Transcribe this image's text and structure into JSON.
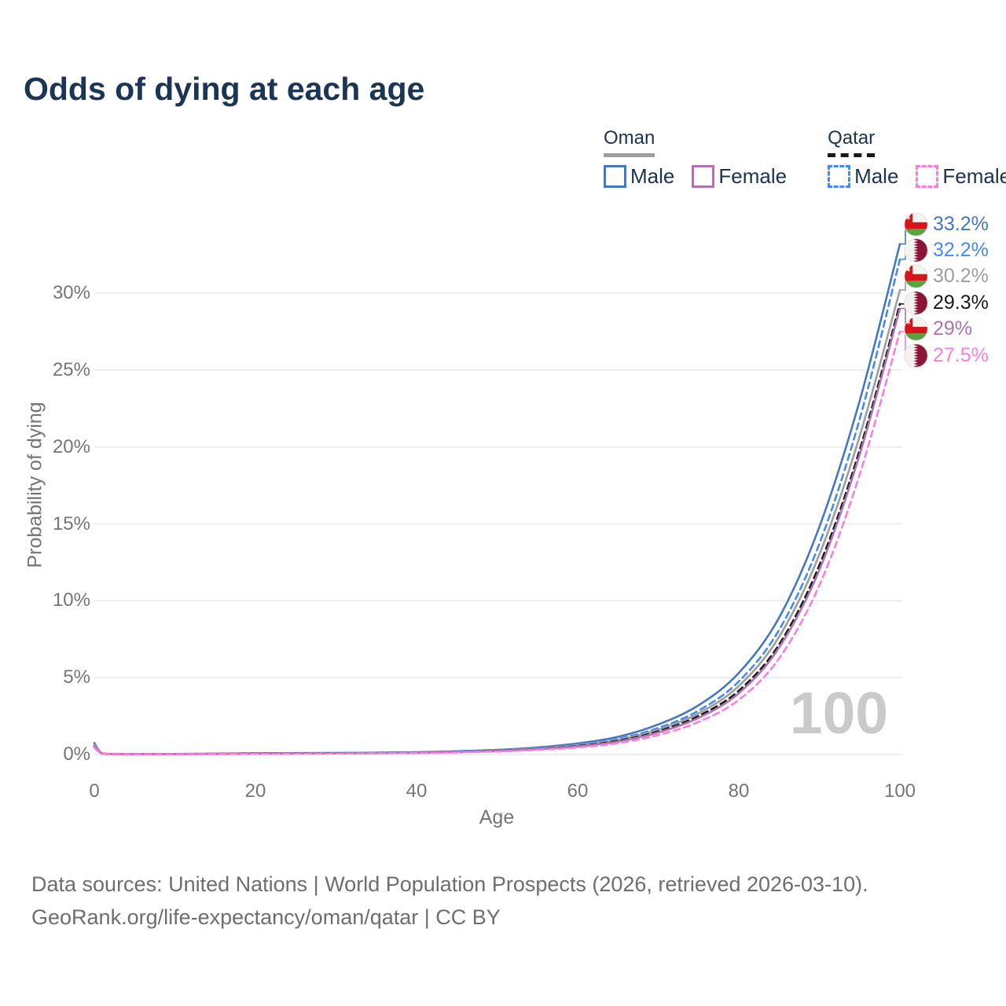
{
  "title": "Odds of dying at each age",
  "legend": {
    "groups": [
      {
        "title": "Oman",
        "line_style": "solid",
        "underline_color": "#9E9E9E",
        "items": [
          {
            "label": "Male",
            "color": "#4478C1",
            "dash": false
          },
          {
            "label": "Female",
            "color": "#B172B2",
            "dash": false
          }
        ]
      },
      {
        "title": "Qatar",
        "line_style": "dashed",
        "underline_color": "#1A1A1A",
        "items": [
          {
            "label": "Male",
            "color": "#4789F2",
            "dash": true
          },
          {
            "label": "Female",
            "color": "#FB7DE4",
            "dash": true
          }
        ]
      }
    ]
  },
  "watermark": "100",
  "footer": {
    "line1": "Data sources: United Nations | World Population Prospects (2026, retrieved 2026-03-10).",
    "line2": "GeoRank.org/life-expectancy/oman/qatar | CC BY"
  },
  "chart_data": {
    "type": "line",
    "title": "Odds of dying at each age",
    "xlabel": "Age",
    "ylabel": "Probability of dying",
    "xlim": [
      0,
      100
    ],
    "ylim_percent": [
      0,
      30
    ],
    "grid": true,
    "x_ticks": [
      0,
      20,
      40,
      60,
      80,
      100
    ],
    "y_ticks": [
      {
        "label": "0%",
        "value": 0
      },
      {
        "label": "5%",
        "value": 5
      },
      {
        "label": "10%",
        "value": 10
      },
      {
        "label": "15%",
        "value": 15
      },
      {
        "label": "20%",
        "value": 20
      },
      {
        "label": "25%",
        "value": 25
      },
      {
        "label": "30%",
        "value": 30
      }
    ],
    "legend_position": "top-right",
    "series": [
      {
        "name": "Oman Male",
        "flag": "oman",
        "color": "#4478C1",
        "dash": false,
        "end_label": "33.2%",
        "points": [
          [
            0,
            0.75
          ],
          [
            1,
            0.06
          ],
          [
            3,
            0.04
          ],
          [
            5,
            0.035
          ],
          [
            10,
            0.035
          ],
          [
            15,
            0.055
          ],
          [
            20,
            0.08
          ],
          [
            25,
            0.09
          ],
          [
            30,
            0.1
          ],
          [
            35,
            0.12
          ],
          [
            40,
            0.15
          ],
          [
            45,
            0.21
          ],
          [
            50,
            0.3
          ],
          [
            55,
            0.46
          ],
          [
            60,
            0.72
          ],
          [
            65,
            1.15
          ],
          [
            70,
            1.95
          ],
          [
            75,
            3.2
          ],
          [
            80,
            5.3
          ],
          [
            85,
            8.9
          ],
          [
            90,
            14.8
          ],
          [
            95,
            23.0
          ],
          [
            100,
            33.2
          ]
        ]
      },
      {
        "name": "Qatar Male",
        "flag": "qatar",
        "color": "#4789F2",
        "dash": true,
        "end_label": "32.2%",
        "points": [
          [
            0,
            0.55
          ],
          [
            1,
            0.05
          ],
          [
            3,
            0.03
          ],
          [
            5,
            0.028
          ],
          [
            10,
            0.028
          ],
          [
            15,
            0.05
          ],
          [
            20,
            0.075
          ],
          [
            25,
            0.085
          ],
          [
            30,
            0.095
          ],
          [
            35,
            0.11
          ],
          [
            40,
            0.14
          ],
          [
            45,
            0.19
          ],
          [
            50,
            0.27
          ],
          [
            55,
            0.41
          ],
          [
            60,
            0.64
          ],
          [
            65,
            1.02
          ],
          [
            70,
            1.72
          ],
          [
            75,
            2.85
          ],
          [
            80,
            4.75
          ],
          [
            85,
            8.1
          ],
          [
            90,
            13.7
          ],
          [
            95,
            21.8
          ],
          [
            100,
            32.2
          ]
        ]
      },
      {
        "name": "Oman",
        "flag": "oman",
        "color": "#9E9E9E",
        "dash": false,
        "end_label": "30.2%",
        "points": [
          [
            0,
            0.65
          ],
          [
            1,
            0.055
          ],
          [
            3,
            0.035
          ],
          [
            5,
            0.03
          ],
          [
            10,
            0.03
          ],
          [
            15,
            0.045
          ],
          [
            20,
            0.065
          ],
          [
            25,
            0.075
          ],
          [
            30,
            0.085
          ],
          [
            35,
            0.1
          ],
          [
            40,
            0.13
          ],
          [
            45,
            0.18
          ],
          [
            50,
            0.26
          ],
          [
            55,
            0.39
          ],
          [
            60,
            0.6
          ],
          [
            65,
            0.96
          ],
          [
            70,
            1.62
          ],
          [
            75,
            2.68
          ],
          [
            80,
            4.45
          ],
          [
            85,
            7.65
          ],
          [
            90,
            13.0
          ],
          [
            95,
            20.7
          ],
          [
            100,
            30.2
          ]
        ]
      },
      {
        "name": "Qatar",
        "flag": "qatar",
        "color": "#1A1A1A",
        "dash": true,
        "end_label": "29.3%",
        "points": [
          [
            0,
            0.5
          ],
          [
            1,
            0.045
          ],
          [
            3,
            0.03
          ],
          [
            5,
            0.025
          ],
          [
            10,
            0.025
          ],
          [
            15,
            0.04
          ],
          [
            20,
            0.06
          ],
          [
            25,
            0.07
          ],
          [
            30,
            0.08
          ],
          [
            35,
            0.095
          ],
          [
            40,
            0.12
          ],
          [
            45,
            0.165
          ],
          [
            50,
            0.24
          ],
          [
            55,
            0.36
          ],
          [
            60,
            0.55
          ],
          [
            65,
            0.89
          ],
          [
            70,
            1.51
          ],
          [
            75,
            2.51
          ],
          [
            80,
            4.15
          ],
          [
            85,
            7.15
          ],
          [
            90,
            12.3
          ],
          [
            95,
            19.8
          ],
          [
            100,
            29.3
          ]
        ]
      },
      {
        "name": "Oman Female",
        "flag": "oman",
        "color": "#B172B2",
        "dash": false,
        "end_label": "29%",
        "points": [
          [
            0,
            0.6
          ],
          [
            1,
            0.05
          ],
          [
            3,
            0.03
          ],
          [
            5,
            0.025
          ],
          [
            10,
            0.025
          ],
          [
            15,
            0.035
          ],
          [
            20,
            0.045
          ],
          [
            25,
            0.055
          ],
          [
            30,
            0.065
          ],
          [
            35,
            0.085
          ],
          [
            40,
            0.11
          ],
          [
            45,
            0.155
          ],
          [
            50,
            0.225
          ],
          [
            55,
            0.34
          ],
          [
            60,
            0.52
          ],
          [
            65,
            0.84
          ],
          [
            70,
            1.43
          ],
          [
            75,
            2.38
          ],
          [
            80,
            3.98
          ],
          [
            85,
            6.95
          ],
          [
            90,
            12.0
          ],
          [
            95,
            19.5
          ],
          [
            100,
            29.0
          ]
        ]
      },
      {
        "name": "Qatar Female",
        "flag": "qatar",
        "color": "#FB7DE4",
        "dash": true,
        "end_label": "27.5%",
        "points": [
          [
            0,
            0.45
          ],
          [
            1,
            0.04
          ],
          [
            3,
            0.025
          ],
          [
            5,
            0.02
          ],
          [
            10,
            0.02
          ],
          [
            15,
            0.03
          ],
          [
            20,
            0.04
          ],
          [
            25,
            0.05
          ],
          [
            30,
            0.06
          ],
          [
            35,
            0.075
          ],
          [
            40,
            0.1
          ],
          [
            45,
            0.135
          ],
          [
            50,
            0.195
          ],
          [
            55,
            0.3
          ],
          [
            60,
            0.46
          ],
          [
            65,
            0.74
          ],
          [
            70,
            1.27
          ],
          [
            75,
            2.12
          ],
          [
            80,
            3.55
          ],
          [
            85,
            6.25
          ],
          [
            90,
            11.0
          ],
          [
            95,
            18.2
          ],
          [
            100,
            27.5
          ]
        ]
      }
    ],
    "flag_colors": {
      "oman_red": "#D7141A",
      "oman_green": "#55A53C",
      "oman_white": "#F4F2EE",
      "qatar_maroon": "#8A1538",
      "qatar_white": "#F4F2EE"
    }
  }
}
